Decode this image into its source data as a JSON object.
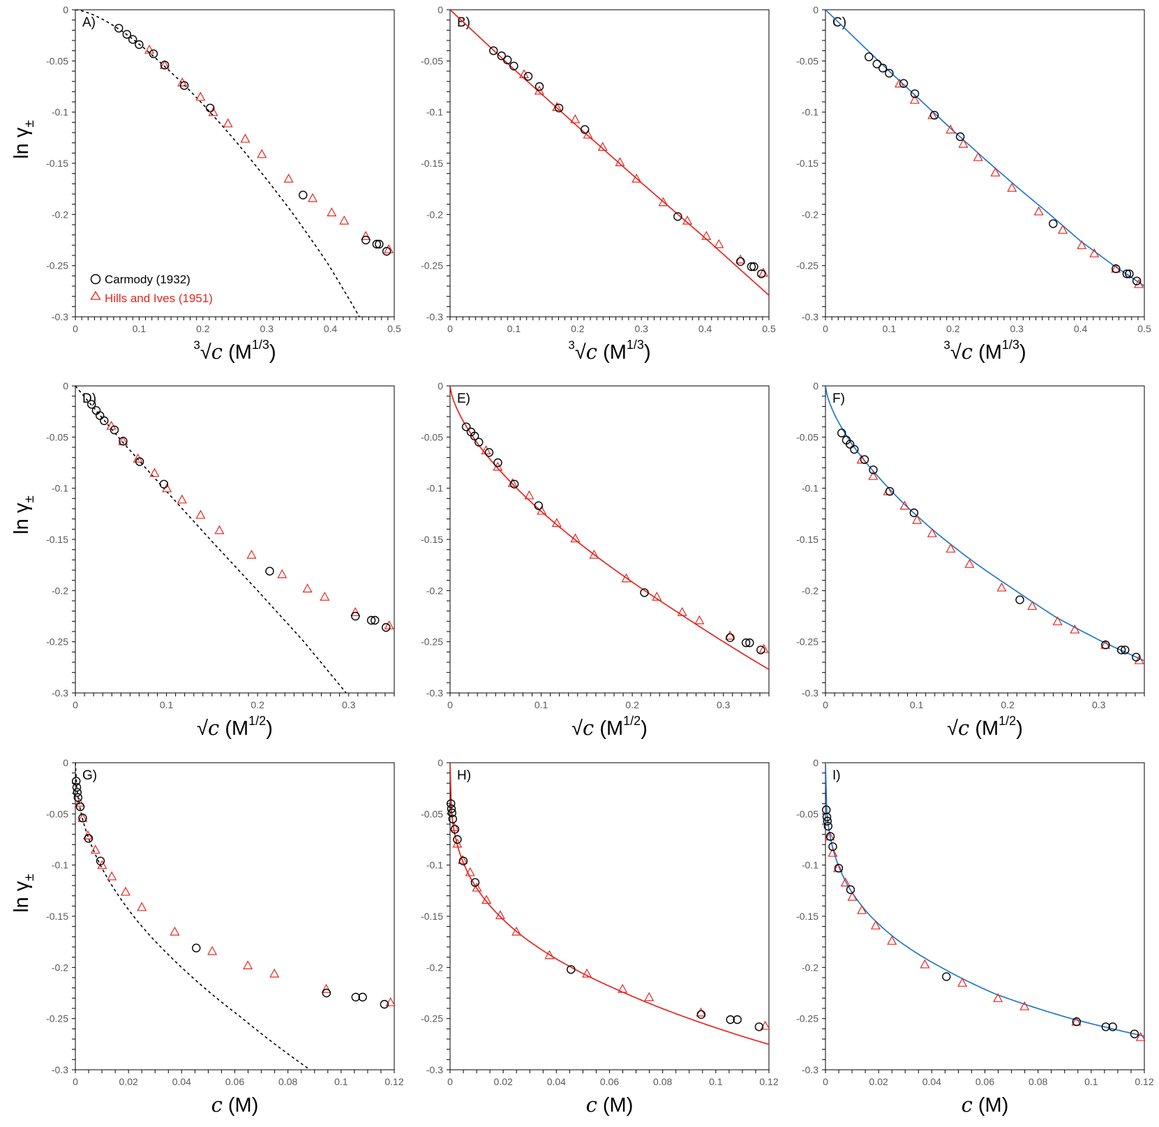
{
  "figure": {
    "ylabel_base": "ln γ",
    "ylabel_sub": "±",
    "legend": [
      {
        "marker": "circle",
        "label": "Carmody (1932)",
        "color": "#000000"
      },
      {
        "marker": "triangle",
        "label": "Hills and Ives (1951)",
        "color": "#e8251f"
      }
    ],
    "colors": {
      "carmody": "#000000",
      "hills": "#e8251f",
      "dashed": "#000000",
      "red_fit": "#e8251f",
      "blue_fit": "#1f78c8"
    },
    "x_axes": {
      "cbrt": {
        "range": [
          0,
          0.5
        ],
        "ticks": [
          0,
          0.1,
          0.2,
          0.3,
          0.4,
          0.5
        ],
        "tick_labels": [
          "0",
          "0.1",
          "0.2",
          "0.3",
          "0.4",
          "0.5"
        ],
        "label_prefix": "3",
        "label_var": "c",
        "label_unit_base": "(M",
        "label_unit_exp": "1/3",
        "label_unit_end": ")"
      },
      "sqrt": {
        "range": [
          0,
          0.35
        ],
        "ticks": [
          0,
          0.1,
          0.2,
          0.3
        ],
        "tick_labels": [
          "0",
          "0.1",
          "0.2",
          "0.3"
        ],
        "label_prefix": "√",
        "label_var": "c",
        "label_unit_base": "(M",
        "label_unit_exp": "1/2",
        "label_unit_end": ")"
      },
      "linear": {
        "range": [
          0,
          0.12
        ],
        "ticks": [
          0,
          0.02,
          0.04,
          0.06,
          0.08,
          0.1,
          0.12
        ],
        "tick_labels": [
          "0",
          "0.02",
          "0.04",
          "0.06",
          "0.08",
          "0.1",
          "0.12"
        ],
        "label_prefix": "",
        "label_var": "c",
        "label_unit_base": "(M",
        "label_unit_exp": "",
        "label_unit_end": ")"
      }
    },
    "y_axis": {
      "range": [
        -0.3,
        0
      ],
      "ticks": [
        0,
        -0.05,
        -0.1,
        -0.15,
        -0.2,
        -0.25,
        -0.3
      ],
      "tick_labels": [
        "0",
        "-0.05",
        "-0.1",
        "-0.15",
        "-0.2",
        "-0.25",
        "-0.3"
      ]
    }
  },
  "chart_data": {
    "type": "scatter",
    "description_note": "Nine panels; x is c^(1/3), c^(1/2) or c (M); y is ln γ±",
    "panels": [
      {
        "label": "A)",
        "x_axis": "cbrt",
        "model": "dashed"
      },
      {
        "label": "B)",
        "x_axis": "cbrt",
        "model": "red_fit"
      },
      {
        "label": "C)",
        "x_axis": "cbrt",
        "model": "blue_fit"
      },
      {
        "label": "D)",
        "x_axis": "sqrt",
        "model": "dashed"
      },
      {
        "label": "E)",
        "x_axis": "sqrt",
        "model": "red_fit"
      },
      {
        "label": "F)",
        "x_axis": "sqrt",
        "model": "blue_fit"
      },
      {
        "label": "G)",
        "x_axis": "linear",
        "model": "dashed"
      },
      {
        "label": "H)",
        "x_axis": "linear",
        "model": "red_fit"
      },
      {
        "label": "I)",
        "x_axis": "linear",
        "model": "blue_fit"
      }
    ],
    "models": {
      "dashed": {
        "type": "line",
        "style": "dashed",
        "color": "#000000",
        "x_sqrt": [
          0,
          0.05,
          0.1,
          0.15,
          0.2,
          0.25,
          0.3
        ],
        "y": [
          0,
          -0.053,
          -0.103,
          -0.152,
          -0.2,
          -0.249,
          -0.303
        ]
      },
      "red_fit": {
        "type": "line",
        "style": "solid",
        "color": "#e8251f",
        "x_cbrt": [
          0,
          0.1,
          0.2,
          0.3,
          0.4,
          0.5
        ],
        "y": [
          0,
          -0.058,
          -0.114,
          -0.169,
          -0.223,
          -0.279
        ]
      },
      "blue_fit": {
        "type": "line",
        "style": "solid",
        "color": "#1f78c8",
        "x_cbrt": [
          0,
          0.1,
          0.15,
          0.2,
          0.25,
          0.3,
          0.35,
          0.4,
          0.45,
          0.5
        ],
        "y": [
          0,
          -0.06,
          -0.089,
          -0.118,
          -0.146,
          -0.173,
          -0.199,
          -0.226,
          -0.249,
          -0.27
        ]
      }
    },
    "series": [
      {
        "name": "Carmody (1932)",
        "marker": "circle",
        "c_M": [
          0.000316,
          0.000527,
          0.000727,
          0.001,
          0.00184,
          0.00275,
          0.00498,
          0.00944,
          0.0455,
          0.0945,
          0.1055,
          0.1081,
          0.1163
        ],
        "ln_gamma_panelA": [
          -0.018,
          -0.024,
          -0.029,
          -0.034,
          -0.043,
          -0.054,
          -0.074,
          -0.096,
          -0.181,
          -0.225,
          -0.229,
          -0.229,
          -0.236
        ],
        "ln_gamma_panelB": [
          -0.04,
          -0.045,
          -0.049,
          -0.055,
          -0.065,
          -0.075,
          -0.096,
          -0.117,
          -0.202,
          -0.246,
          -0.251,
          -0.251,
          -0.258
        ],
        "ln_gamma_panelC": [
          -0.046,
          -0.053,
          -0.057,
          -0.062,
          -0.072,
          -0.082,
          -0.103,
          -0.124,
          -0.209,
          -0.253,
          -0.258,
          -0.258,
          -0.265
        ]
      },
      {
        "name": "Hills and Ives (1951)",
        "marker": "triangle",
        "c_M": [
          0.00156,
          0.00274,
          0.00471,
          0.00755,
          0.0101,
          0.0137,
          0.0189,
          0.025,
          0.0374,
          0.0515,
          0.0649,
          0.0749,
          0.0944,
          0.1186
        ],
        "ln_gamma_panelA": [
          -0.039,
          -0.054,
          -0.071,
          -0.085,
          -0.1,
          -0.111,
          -0.126,
          -0.141,
          -0.165,
          -0.184,
          -0.198,
          -0.206,
          -0.221,
          -0.234
        ],
        "ln_gamma_panelB": [
          -0.063,
          -0.079,
          -0.095,
          -0.107,
          -0.122,
          -0.134,
          -0.149,
          -0.165,
          -0.188,
          -0.206,
          -0.221,
          -0.229,
          -0.244,
          -0.257
        ],
        "ln_gamma_panelC": [
          -0.072,
          -0.088,
          -0.103,
          -0.117,
          -0.131,
          -0.144,
          -0.159,
          -0.174,
          -0.197,
          -0.215,
          -0.23,
          -0.238,
          -0.253,
          -0.268
        ]
      }
    ]
  }
}
